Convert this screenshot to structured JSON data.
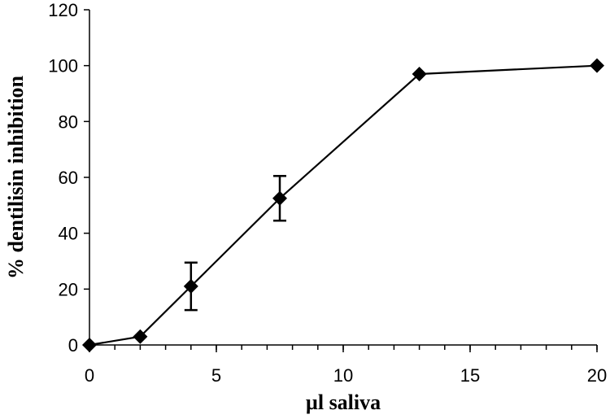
{
  "chart_data": {
    "type": "line",
    "title": "",
    "xlabel": "µl saliva",
    "ylabel": "% dentilisin inhibition",
    "xlim": [
      0,
      20
    ],
    "ylim": [
      0,
      120
    ],
    "x_ticks": [
      0,
      5,
      10,
      15,
      20
    ],
    "y_ticks": [
      0,
      20,
      40,
      60,
      80,
      100,
      120
    ],
    "x_tick_labels": [
      "0",
      "5",
      "10",
      "15",
      "20"
    ],
    "y_tick_labels": [
      "0",
      "20",
      "40",
      "60",
      "80",
      "100",
      "120"
    ],
    "x_minor_step": 1,
    "grid": false,
    "legend": "none",
    "marker": "diamond",
    "color": "#000000",
    "series": [
      {
        "x": [
          0,
          2,
          4,
          7.5,
          13,
          20
        ],
        "values": [
          0,
          3,
          21,
          52.5,
          97,
          100
        ],
        "error": [
          0,
          0,
          8.5,
          8,
          0,
          0
        ]
      }
    ]
  }
}
